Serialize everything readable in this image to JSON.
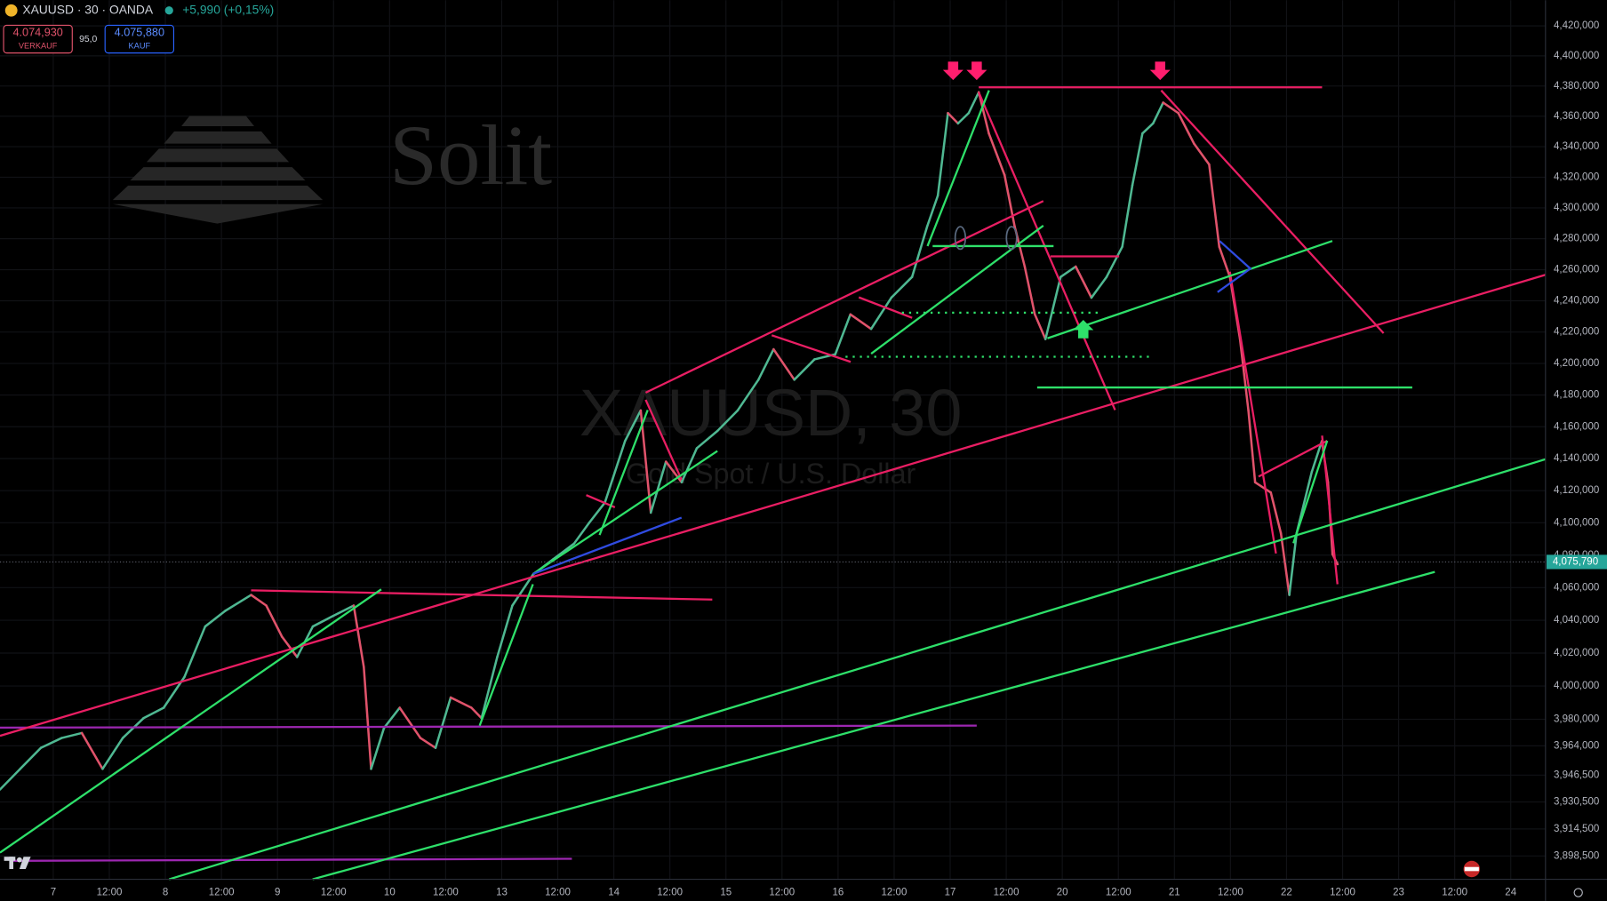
{
  "header": {
    "symbol": "XAUUSD · 30 · OANDA",
    "change": "+5,990 (+0,15%)",
    "sell_price": "4.074,930",
    "sell_label": "VERKAUF",
    "spread": "95,0",
    "buy_price": "4.075,880",
    "buy_label": "KAUF"
  },
  "watermark": {
    "brand": "Solit",
    "symbol": "XAUUSD, 30",
    "description": "Gold Spot / U.S. Dollar"
  },
  "chart_data": {
    "type": "line",
    "log_scale": true,
    "grid": true,
    "up_color": "#4fb892",
    "down_color": "#e0536b",
    "x": [
      -0.95,
      -0.59,
      -0.22,
      0.15,
      0.51,
      0.88,
      1.24,
      1.61,
      1.97,
      2.34,
      2.71,
      3.07,
      3.53,
      3.8,
      4.08,
      4.35,
      4.63,
      4.99,
      5.36,
      5.54,
      5.67,
      5.9,
      6.18,
      6.55,
      6.82,
      7.09,
      7.46,
      7.64,
      7.92,
      8.19,
      8.56,
      8.92,
      9.29,
      9.56,
      9.84,
      10.2,
      10.48,
      10.66,
      10.93,
      11.21,
      11.48,
      11.85,
      12.21,
      12.58,
      12.85,
      13.22,
      13.58,
      13.95,
      14.22,
      14.59,
      14.95,
      15.32,
      15.59,
      15.78,
      15.96,
      16.14,
      16.33,
      16.51,
      16.69,
      16.97,
      17.15,
      17.33,
      17.51,
      17.7,
      17.97,
      18.24,
      18.52,
      18.79,
      19.07,
      19.25,
      19.43,
      19.62,
      19.8,
      20.07,
      20.35,
      20.62,
      20.8,
      20.99,
      21.17,
      21.32,
      21.44,
      21.72,
      21.9,
      22.05,
      22.18,
      22.45,
      22.63,
      22.74,
      22.82,
      22.91
    ],
    "values": [
      3937.9,
      3950.2,
      3962.8,
      3968.7,
      3971.7,
      3950.2,
      3968.7,
      3980.6,
      3986.9,
      4005.5,
      4036.2,
      4045.8,
      4055.5,
      4049.0,
      4030,
      4017.6,
      4036.2,
      4042.6,
      4049.0,
      4011.5,
      3950.2,
      3974.7,
      3986.9,
      3968.7,
      3962.8,
      3993.1,
      3986.9,
      3980.6,
      4017.6,
      4049.0,
      4068.1,
      4077.5,
      4087.1,
      4100,
      4112.5,
      4151,
      4170.3,
      4106.3,
      4138.1,
      4125.2,
      4146.5,
      4157.4,
      4170.3,
      4189.7,
      4209,
      4189.7,
      4202.6,
      4205.8,
      4231.3,
      4222,
      4242,
      4255.3,
      4288,
      4308,
      4362.1,
      4355.3,
      4362.1,
      4375.9,
      4348.7,
      4321.4,
      4288,
      4262,
      4231.3,
      4215.5,
      4255.3,
      4262,
      4242,
      4255.3,
      4274.8,
      4314.7,
      4348.7,
      4355.3,
      4369,
      4362.1,
      4342,
      4328.3,
      4274.8,
      4255.3,
      4215.5,
      4170.3,
      4125.2,
      4118.8,
      4093.5,
      4055.5,
      4093.5,
      4131.6,
      4151,
      4125.2,
      4080.6,
      4074.4
    ],
    "xlim": [
      -0.95,
      26.62
    ],
    "xticks": [
      {
        "value": 0,
        "label": "7"
      },
      {
        "value": 1,
        "label": "12:00"
      },
      {
        "value": 2,
        "label": "8"
      },
      {
        "value": 3,
        "label": "12:00"
      },
      {
        "value": 4,
        "label": "9"
      },
      {
        "value": 5,
        "label": "12:00"
      },
      {
        "value": 6,
        "label": "10"
      },
      {
        "value": 7,
        "label": "12:00"
      },
      {
        "value": 8,
        "label": "13"
      },
      {
        "value": 9,
        "label": "12:00"
      },
      {
        "value": 10,
        "label": "14"
      },
      {
        "value": 11,
        "label": "12:00"
      },
      {
        "value": 12,
        "label": "15"
      },
      {
        "value": 13,
        "label": "12:00"
      },
      {
        "value": 14,
        "label": "16"
      },
      {
        "value": 15,
        "label": "12:00"
      },
      {
        "value": 16,
        "label": "17"
      },
      {
        "value": 17,
        "label": "12:00"
      },
      {
        "value": 18,
        "label": "20"
      },
      {
        "value": 19,
        "label": "12:00"
      },
      {
        "value": 20,
        "label": "21"
      },
      {
        "value": 21,
        "label": "12:00"
      },
      {
        "value": 22,
        "label": "22"
      },
      {
        "value": 23,
        "label": "12:00"
      },
      {
        "value": 24,
        "label": "23"
      },
      {
        "value": 25,
        "label": "12:00"
      },
      {
        "value": 26,
        "label": "24"
      }
    ],
    "ylim": [
      3884.8,
      4437.2
    ],
    "yticks": [
      {
        "value": 4420,
        "label": "4,420,000"
      },
      {
        "value": 4400,
        "label": "4,400,000"
      },
      {
        "value": 4380,
        "label": "4,380,000"
      },
      {
        "value": 4360,
        "label": "4,360,000"
      },
      {
        "value": 4340,
        "label": "4,340,000"
      },
      {
        "value": 4320,
        "label": "4,320,000"
      },
      {
        "value": 4300,
        "label": "4,300,000"
      },
      {
        "value": 4280,
        "label": "4,280,000"
      },
      {
        "value": 4260,
        "label": "4,260,000"
      },
      {
        "value": 4240,
        "label": "4,240,000"
      },
      {
        "value": 4220,
        "label": "4,220,000"
      },
      {
        "value": 4200,
        "label": "4,200,000"
      },
      {
        "value": 4180,
        "label": "4,180,000"
      },
      {
        "value": 4160,
        "label": "4,160,000"
      },
      {
        "value": 4140,
        "label": "4,140,000"
      },
      {
        "value": 4120,
        "label": "4,120,000"
      },
      {
        "value": 4100,
        "label": "4,100,000"
      },
      {
        "value": 4080,
        "label": "4,080,000"
      },
      {
        "value": 4060,
        "label": "4,060,000"
      },
      {
        "value": 4040,
        "label": "4,040,000"
      },
      {
        "value": 4020,
        "label": "4,020,000"
      },
      {
        "value": 4000,
        "label": "4,000,000"
      },
      {
        "value": 3980,
        "label": "3,980,000"
      },
      {
        "value": 3964,
        "label": "3,964,000"
      },
      {
        "value": 3946.5,
        "label": "3,946,500"
      },
      {
        "value": 3930.5,
        "label": "3,930,500"
      },
      {
        "value": 3914.5,
        "label": "3,914,500"
      },
      {
        "value": 3898.5,
        "label": "3,898,500"
      }
    ],
    "last_price": {
      "value": 4075.79,
      "label": "4,075,790"
    }
  }
}
